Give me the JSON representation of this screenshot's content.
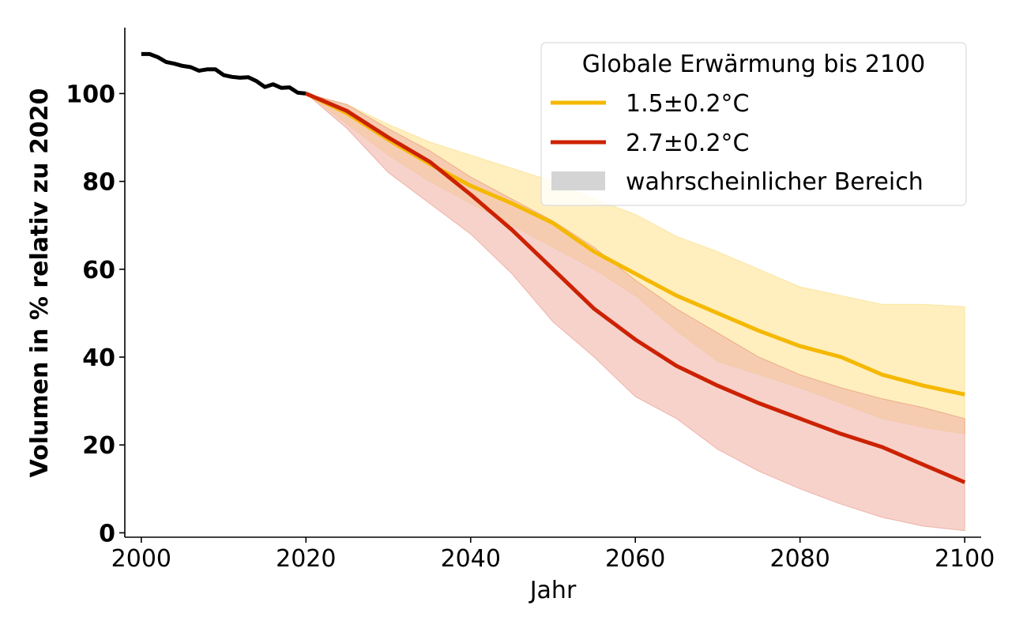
{
  "chart_data": {
    "type": "line",
    "xlabel": "Jahr",
    "ylabel": "Volumen in % relativ zu 2020",
    "xlim": [
      1998,
      2102
    ],
    "ylim": [
      -1,
      115
    ],
    "x_ticks": [
      2000,
      2020,
      2040,
      2060,
      2080,
      2100
    ],
    "y_ticks": [
      0,
      20,
      40,
      60,
      80,
      100
    ],
    "grid": false,
    "legend": {
      "title": "Globale Erwärmung bis 2100",
      "placement": "top-right",
      "entries": [
        "1.5±0.2°C",
        "2.7±0.2°C",
        "wahrscheinlicher Bereich"
      ]
    },
    "history": {
      "color": "#000000",
      "x": [
        2000,
        2001,
        2002,
        2003,
        2004,
        2005,
        2006,
        2007,
        2008,
        2009,
        2010,
        2011,
        2012,
        2013,
        2014,
        2015,
        2016,
        2017,
        2018,
        2019,
        2020
      ],
      "values": [
        109,
        109,
        108.3,
        107.2,
        106.8,
        106.3,
        106,
        105.2,
        105.5,
        105.5,
        104.2,
        103.8,
        103.6,
        103.7,
        102.8,
        101.5,
        102.1,
        101.3,
        101.4,
        100.2,
        100
      ]
    },
    "series": [
      {
        "name": "1.5±0.2°C",
        "color": "#f5b800",
        "band_color": "#ffeaaa",
        "x": [
          2020,
          2025,
          2030,
          2035,
          2040,
          2045,
          2050,
          2055,
          2060,
          2065,
          2070,
          2075,
          2080,
          2085,
          2090,
          2095,
          2100
        ],
        "values": [
          100,
          95.5,
          89.5,
          84,
          79,
          75,
          70.5,
          64,
          59,
          54,
          50,
          46,
          42.5,
          40,
          36,
          33.5,
          31.5
        ],
        "upper": [
          100,
          97.5,
          93,
          89,
          86,
          83,
          80,
          76,
          72.5,
          67.5,
          64,
          60,
          56,
          54,
          52,
          52,
          51.5
        ],
        "lower": [
          100,
          93,
          86,
          80,
          75,
          70,
          65,
          60,
          54,
          46,
          39,
          36,
          33,
          29.5,
          26,
          24,
          22.5
        ]
      },
      {
        "name": "2.7±0.2°C",
        "color": "#cc2200",
        "band_color": "#f0b4a8",
        "x": [
          2020,
          2025,
          2030,
          2035,
          2040,
          2045,
          2050,
          2055,
          2060,
          2065,
          2070,
          2075,
          2080,
          2085,
          2090,
          2095,
          2100
        ],
        "values": [
          100,
          96,
          90,
          84.5,
          77,
          69,
          60,
          51,
          44,
          38,
          33.5,
          29.5,
          26,
          22.5,
          19.5,
          15.5,
          11.5
        ],
        "upper": [
          100,
          97.5,
          92,
          87,
          81,
          76,
          71,
          65,
          57.5,
          51,
          45.5,
          40,
          36,
          33,
          30.5,
          28.5,
          26
        ],
        "lower": [
          100,
          92,
          82,
          75,
          68,
          59,
          48,
          40,
          31,
          26,
          19,
          14,
          10,
          6.5,
          3.5,
          1.5,
          0.5
        ]
      }
    ]
  }
}
